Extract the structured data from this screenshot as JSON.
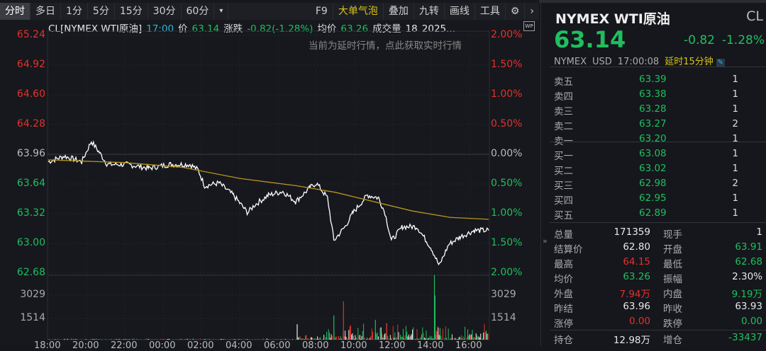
{
  "toolbar": {
    "periods": [
      "分时",
      "多日",
      "1分",
      "5分",
      "15分",
      "30分",
      "60分"
    ],
    "more": "▾",
    "tools": [
      "F9",
      "大单气泡",
      "叠加",
      "九转",
      "画线",
      "工具"
    ],
    "settings_icon": "gear-icon",
    "next_icon": "chevron-right-icon"
  },
  "info": {
    "name": "CL[NYMEX WTI原油]",
    "time": "17:00",
    "price_label": "价",
    "price": "63.14",
    "change_label": "涨跌",
    "change": "-0.82(-1.28%)",
    "avg_label": "均价",
    "avg": "63.26",
    "vol_label": "成交量",
    "vol": "18",
    "date": "2025..."
  },
  "delay_notice": "当前为延时行情，点此获取实时行情",
  "wp_badge": "WP",
  "colors": {
    "up": "#e5312c",
    "down": "#1fbf5f",
    "price_line": "#ffffff",
    "avg_line": "#b8941c",
    "accent": "#d8c21a"
  },
  "chart_data": {
    "type": "line",
    "price_ticks": [
      "65.24",
      "64.92",
      "64.60",
      "64.28",
      "63.96",
      "63.64",
      "63.32",
      "63.00",
      "62.68"
    ],
    "pct_ticks": [
      "2.00%",
      "1.50%",
      "1.00%",
      "0.50%",
      "0.00%",
      "0.50%",
      "1.00%",
      "1.50%",
      "2.00%"
    ],
    "ylim": [
      62.68,
      65.24
    ],
    "prev_settle": 63.96,
    "volume_ticks": [
      "3029",
      "1514"
    ],
    "time_ticks": [
      "18:00",
      "20:00",
      "22:00",
      "00:00",
      "02:00",
      "04:00",
      "06:00",
      "08:00",
      "10:00",
      "12:00",
      "14:00",
      "16:00"
    ],
    "price": [
      [
        "18:00",
        63.88
      ],
      [
        "18:50",
        63.94
      ],
      [
        "19:45",
        63.88
      ],
      [
        "20:15",
        64.1
      ],
      [
        "20:40",
        63.98
      ],
      [
        "21:05",
        63.85
      ],
      [
        "22:10",
        63.85
      ],
      [
        "23:15",
        63.81
      ],
      [
        "00:20",
        63.85
      ],
      [
        "01:25",
        63.85
      ],
      [
        "01:50",
        63.79
      ],
      [
        "02:10",
        63.62
      ],
      [
        "02:55",
        63.65
      ],
      [
        "03:40",
        63.52
      ],
      [
        "04:25",
        63.33
      ],
      [
        "04:45",
        63.41
      ],
      [
        "05:30",
        63.52
      ],
      [
        "06:15",
        63.56
      ],
      [
        "06:55",
        63.45
      ],
      [
        "07:40",
        63.6
      ],
      [
        "08:00",
        63.65
      ],
      [
        "08:35",
        63.49
      ],
      [
        "08:55",
        63.03
      ],
      [
        "09:30",
        63.18
      ],
      [
        "09:55",
        63.33
      ],
      [
        "10:40",
        63.52
      ],
      [
        "11:15",
        63.49
      ],
      [
        "11:35",
        63.33
      ],
      [
        "11:55",
        63.03
      ],
      [
        "12:30",
        63.18
      ],
      [
        "13:15",
        63.18
      ],
      [
        "14:00",
        62.95
      ],
      [
        "14:25",
        62.76
      ],
      [
        "14:55",
        62.99
      ],
      [
        "15:30",
        63.07
      ],
      [
        "16:15",
        63.14
      ],
      [
        "17:00",
        63.14
      ]
    ],
    "avg": [
      [
        "18:00",
        63.9
      ],
      [
        "22:00",
        63.87
      ],
      [
        "01:00",
        63.82
      ],
      [
        "04:00",
        63.7
      ],
      [
        "07:00",
        63.62
      ],
      [
        "09:00",
        63.55
      ],
      [
        "11:00",
        63.45
      ],
      [
        "13:00",
        63.35
      ],
      [
        "15:00",
        63.28
      ],
      [
        "17:00",
        63.26
      ]
    ],
    "volume_peaks": [
      [
        "07:00",
        1050,
        "w"
      ],
      [
        "08:55",
        1650,
        "g"
      ],
      [
        "09:25",
        2600,
        "r"
      ],
      [
        "09:45",
        900,
        "r"
      ],
      [
        "11:05",
        1350,
        "g"
      ],
      [
        "11:40",
        1050,
        "r"
      ],
      [
        "14:10",
        4400,
        "g"
      ],
      [
        "14:12",
        3000,
        "g"
      ],
      [
        "14:20",
        900,
        "r"
      ]
    ],
    "ylim_volume": [
      0,
      4543
    ]
  },
  "quote": {
    "name": "NYMEX WTI原油",
    "code": "CL",
    "price": "63.14",
    "change": "-0.82",
    "pct": "-1.28%",
    "exchange": "NYMEX",
    "currency": "USD",
    "time": "17:00:08",
    "delay": "延时15分钟",
    "edit_icon": "pencil-icon"
  },
  "asks": [
    {
      "label": "卖五",
      "price": "63.39",
      "qty": "1"
    },
    {
      "label": "卖四",
      "price": "63.38",
      "qty": "1"
    },
    {
      "label": "卖三",
      "price": "63.28",
      "qty": "1"
    },
    {
      "label": "卖二",
      "price": "63.27",
      "qty": "2"
    },
    {
      "label": "卖一",
      "price": "63.20",
      "qty": "1"
    }
  ],
  "bids": [
    {
      "label": "买一",
      "price": "63.08",
      "qty": "1"
    },
    {
      "label": "买二",
      "price": "63.02",
      "qty": "1"
    },
    {
      "label": "买三",
      "price": "62.98",
      "qty": "2"
    },
    {
      "label": "买四",
      "price": "62.95",
      "qty": "1"
    },
    {
      "label": "买五",
      "price": "62.89",
      "qty": "1"
    }
  ],
  "stats": [
    {
      "k1": "总量",
      "v1": "171359",
      "c1": "w",
      "k2": "现手",
      "v2": "1",
      "c2": "w"
    },
    {
      "k1": "结算价",
      "v1": "62.80",
      "c1": "w",
      "k2": "开盘",
      "v2": "63.91",
      "c2": "g"
    },
    {
      "k1": "最高",
      "v1": "64.15",
      "c1": "r",
      "k2": "最低",
      "v2": "62.68",
      "c2": "g"
    },
    {
      "k1": "均价",
      "v1": "63.26",
      "c1": "g",
      "k2": "振幅",
      "v2": "2.30%",
      "c2": "w"
    },
    {
      "k1": "外盘",
      "v1": "7.94万",
      "c1": "r",
      "k2": "内盘",
      "v2": "9.19万",
      "c2": "g"
    },
    {
      "k1": "昨结",
      "v1": "63.96",
      "c1": "w",
      "k2": "昨收",
      "v2": "63.93",
      "c2": "w"
    },
    {
      "k1": "涨停",
      "v1": "0.00",
      "c1": "r",
      "k2": "跌停",
      "v2": "0.00",
      "c2": "g"
    }
  ],
  "open_interest": {
    "k1": "持仓",
    "v1": "12.98万",
    "c1": "w",
    "k2": "增仓",
    "v2": "-33437",
    "c2": "g"
  },
  "expand_icon": "»"
}
